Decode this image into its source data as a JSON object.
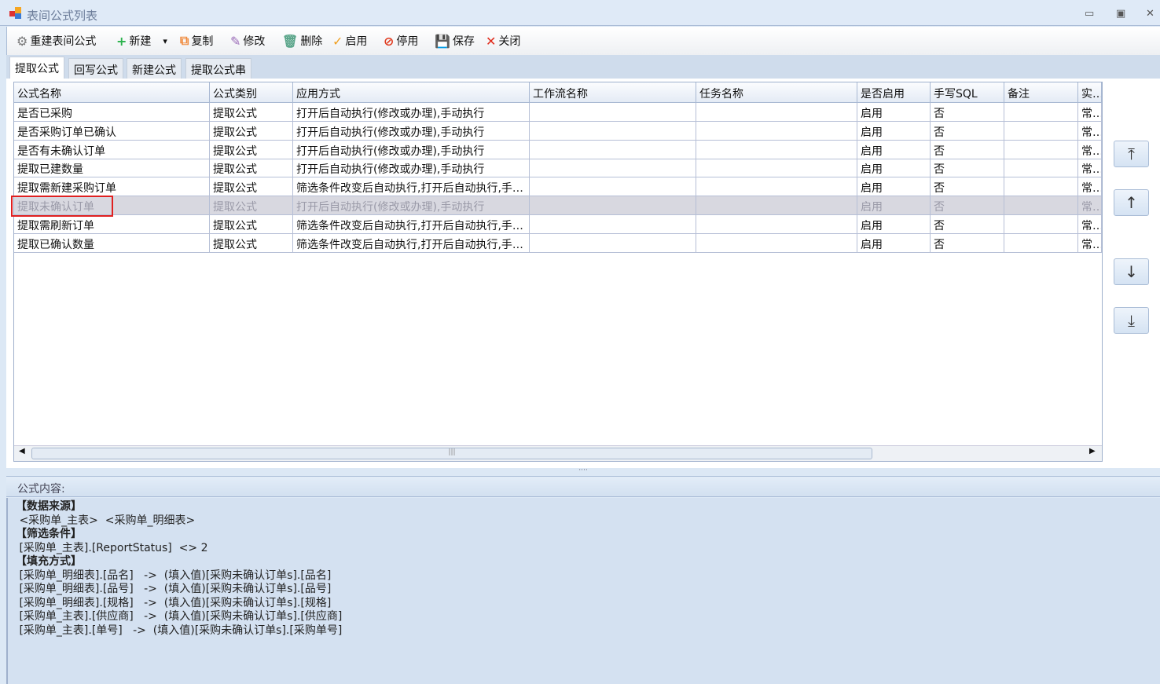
{
  "window": {
    "title": "表间公式列表",
    "controls": [
      "minimize",
      "maximize",
      "close"
    ]
  },
  "toolbar": [
    {
      "icon": "gear-icon",
      "label": "重建表间公式",
      "color": "#777"
    },
    {
      "icon": "plus-icon",
      "label": "新建",
      "color": "#2bb24c",
      "dropdown": true
    },
    {
      "icon": "copy-icon",
      "label": "复制",
      "color": "#f08a3c"
    },
    {
      "icon": "pencil-icon",
      "label": "修改",
      "color": "#9a6bb8"
    },
    {
      "icon": "trash-icon",
      "label": "删除",
      "color": "#5aa58a"
    },
    {
      "icon": "check-icon",
      "label": "启用",
      "color": "#f0a020"
    },
    {
      "icon": "ban-icon",
      "label": "停用",
      "color": "#e03a1e"
    },
    {
      "icon": "save-icon",
      "label": "保存",
      "color": "#a0509a"
    },
    {
      "icon": "close-icon",
      "label": "关闭",
      "color": "#e02a1a"
    }
  ],
  "tabs": [
    {
      "label": "提取公式",
      "active": true
    },
    {
      "label": "回写公式"
    },
    {
      "label": "新建公式"
    },
    {
      "label": "提取公式串"
    }
  ],
  "grid": {
    "columns": [
      "公式名称",
      "公式类别",
      "应用方式",
      "工作流名称",
      "任务名称",
      "是否启用",
      "手写SQL",
      "备注",
      "实现"
    ],
    "rows": [
      [
        "是否已采购",
        "提取公式",
        "打开后自动执行(修改或办理),手动执行",
        "",
        "",
        "启用",
        "否",
        "",
        "常规"
      ],
      [
        "是否采购订单已确认",
        "提取公式",
        "打开后自动执行(修改或办理),手动执行",
        "",
        "",
        "启用",
        "否",
        "",
        "常规"
      ],
      [
        "是否有未确认订单",
        "提取公式",
        "打开后自动执行(修改或办理),手动执行",
        "",
        "",
        "启用",
        "否",
        "",
        "常规"
      ],
      [
        "提取已建数量",
        "提取公式",
        "打开后自动执行(修改或办理),手动执行",
        "",
        "",
        "启用",
        "否",
        "",
        "常规"
      ],
      [
        "提取需新建采购订单",
        "提取公式",
        "筛选条件改变后自动执行,打开后自动执行,手动执行",
        "",
        "",
        "启用",
        "否",
        "",
        "常规"
      ],
      [
        "提取未确认订单",
        "提取公式",
        "打开后自动执行(修改或办理),手动执行",
        "",
        "",
        "启用",
        "否",
        "",
        "常规"
      ],
      [
        "提取需刷新订单",
        "提取公式",
        "筛选条件改变后自动执行,打开后自动执行,手动执行",
        "",
        "",
        "启用",
        "否",
        "",
        "常规"
      ],
      [
        "提取已确认数量",
        "提取公式",
        "筛选条件改变后自动执行,打开后自动执行,手动执行",
        "",
        "",
        "启用",
        "否",
        "",
        "常规"
      ]
    ],
    "selected_row": 5,
    "highlight_color": "#e02020"
  },
  "side_buttons": [
    {
      "icon": "move-top-icon",
      "glyph": "⤒"
    },
    {
      "icon": "move-up-icon",
      "glyph": "↑"
    },
    {
      "icon": "move-down-icon",
      "glyph": "↓"
    },
    {
      "icon": "move-bottom-icon",
      "glyph": "⤓"
    }
  ],
  "content": {
    "header": "公式内容:",
    "lines": [
      {
        "text": "【数据来源】",
        "section": true
      },
      {
        "text": " <采购单_主表>  <采购单_明细表>"
      },
      {
        "text": "【筛选条件】",
        "section": true
      },
      {
        "text": " [采购单_主表].[ReportStatus]  <> 2"
      },
      {
        "text": "【填充方式】",
        "section": true
      },
      {
        "text": " [采购单_明细表].[品名]   ->  (填入值)[采购未确认订单s].[品名]"
      },
      {
        "text": " [采购单_明细表].[品号]   ->  (填入值)[采购未确认订单s].[品号]"
      },
      {
        "text": " [采购单_明细表].[规格]   ->  (填入值)[采购未确认订单s].[规格]"
      },
      {
        "text": " [采购单_主表].[供应商]   ->  (填入值)[采购未确认订单s].[供应商]"
      },
      {
        "text": " [采购单_主表].[单号]   ->  (填入值)[采购未确认订单s].[采购单号]"
      }
    ]
  }
}
